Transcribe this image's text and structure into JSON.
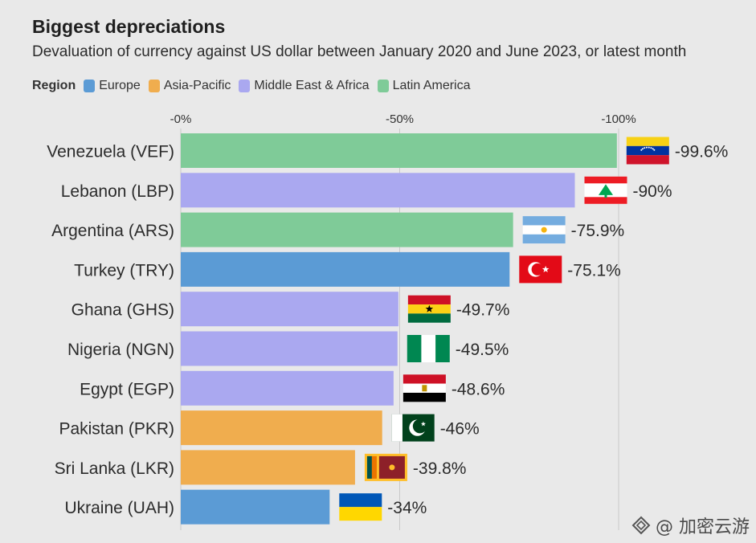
{
  "title": "Biggest depreciations",
  "subtitle": "Devaluation of currency against US dollar between January 2020 and June 2023, or latest month",
  "legend": {
    "title": "Region",
    "items": [
      {
        "label": "Europe",
        "color": "#5b9bd5"
      },
      {
        "label": "Asia-Pacific",
        "color": "#f0ad4e"
      },
      {
        "label": "Middle East & Africa",
        "color": "#aaa8f0"
      },
      {
        "label": "Latin America",
        "color": "#7fcb98"
      }
    ]
  },
  "watermark": "@ 加密云游",
  "chart_data": {
    "type": "bar",
    "orientation": "horizontal",
    "title": "Biggest depreciations",
    "subtitle": "Devaluation of currency against US dollar between January 2020 and June 2023, or latest month",
    "xlim": [
      0,
      -100
    ],
    "ticks": [
      {
        "value": 0,
        "label": "-0%"
      },
      {
        "value": -50,
        "label": "-50%"
      },
      {
        "value": -100,
        "label": "-100%"
      }
    ],
    "grid": "vertical",
    "categories": [
      "Venezuela (VEF)",
      "Lebanon (LBP)",
      "Argentina (ARS)",
      "Turkey (TRY)",
      "Ghana (GHS)",
      "Nigeria (NGN)",
      "Egypt (EGP)",
      "Pakistan (PKR)",
      "Sri Lanka (LKR)",
      "Ukraine (UAH)"
    ],
    "values": [
      -99.6,
      -90,
      -75.9,
      -75.1,
      -49.7,
      -49.5,
      -48.6,
      -46,
      -39.8,
      -34
    ],
    "value_labels": [
      "-99.6%",
      "-90%",
      "-75.9%",
      "-75.1%",
      "-49.7%",
      "-49.5%",
      "-48.6%",
      "-46%",
      "-39.8%",
      "-34%"
    ],
    "regions": [
      "Latin America",
      "Middle East & Africa",
      "Latin America",
      "Europe",
      "Middle East & Africa",
      "Middle East & Africa",
      "Middle East & Africa",
      "Asia-Pacific",
      "Asia-Pacific",
      "Europe"
    ],
    "flags": [
      "venezuela-flag-icon",
      "lebanon-flag-icon",
      "argentina-flag-icon",
      "turkey-flag-icon",
      "ghana-flag-icon",
      "nigeria-flag-icon",
      "egypt-flag-icon",
      "pakistan-flag-icon",
      "sri-lanka-flag-icon",
      "ukraine-flag-icon"
    ],
    "legend_position": "top-left"
  }
}
